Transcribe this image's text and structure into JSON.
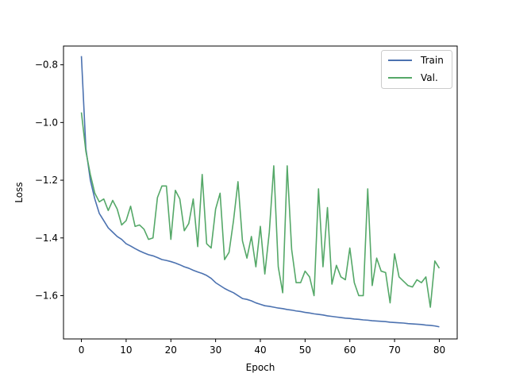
{
  "chart_data": {
    "type": "line",
    "title": "",
    "xlabel": "Epoch",
    "ylabel": "Loss",
    "xlim": [
      -4,
      84
    ],
    "ylim": [
      -1.75,
      -0.735
    ],
    "xticks": [
      0,
      10,
      20,
      30,
      40,
      50,
      60,
      70,
      80
    ],
    "xtick_labels": [
      "0",
      "10",
      "20",
      "30",
      "40",
      "50",
      "60",
      "70",
      "80"
    ],
    "yticks": [
      -1.6,
      -1.4,
      -1.2,
      -1.0,
      -0.8
    ],
    "ytick_labels": [
      "−1.6",
      "−1.4",
      "−1.2",
      "−1.0",
      "−0.8"
    ],
    "grid": false,
    "legend_position": "top-right",
    "series": [
      {
        "name": "Train",
        "color": "#4c72b0",
        "x": [
          0,
          1,
          2,
          3,
          4,
          5,
          6,
          7,
          8,
          9,
          10,
          11,
          12,
          13,
          14,
          15,
          16,
          17,
          18,
          19,
          20,
          21,
          22,
          23,
          24,
          25,
          26,
          27,
          28,
          29,
          30,
          31,
          32,
          33,
          34,
          35,
          36,
          37,
          38,
          39,
          40,
          41,
          42,
          43,
          44,
          45,
          46,
          47,
          48,
          49,
          50,
          51,
          52,
          53,
          54,
          55,
          56,
          57,
          58,
          59,
          60,
          61,
          62,
          63,
          64,
          65,
          66,
          67,
          68,
          69,
          70,
          71,
          72,
          73,
          74,
          75,
          76,
          77,
          78,
          79,
          80
        ],
        "values": [
          -0.77,
          -1.09,
          -1.2,
          -1.265,
          -1.315,
          -1.34,
          -1.365,
          -1.38,
          -1.395,
          -1.405,
          -1.42,
          -1.428,
          -1.437,
          -1.445,
          -1.452,
          -1.458,
          -1.462,
          -1.468,
          -1.475,
          -1.478,
          -1.482,
          -1.487,
          -1.493,
          -1.5,
          -1.505,
          -1.512,
          -1.518,
          -1.523,
          -1.53,
          -1.54,
          -1.555,
          -1.565,
          -1.575,
          -1.583,
          -1.59,
          -1.6,
          -1.61,
          -1.613,
          -1.618,
          -1.625,
          -1.63,
          -1.635,
          -1.637,
          -1.64,
          -1.643,
          -1.645,
          -1.648,
          -1.65,
          -1.653,
          -1.655,
          -1.658,
          -1.66,
          -1.663,
          -1.665,
          -1.667,
          -1.67,
          -1.672,
          -1.674,
          -1.676,
          -1.678,
          -1.679,
          -1.681,
          -1.682,
          -1.684,
          -1.685,
          -1.687,
          -1.688,
          -1.689,
          -1.69,
          -1.692,
          -1.693,
          -1.694,
          -1.695,
          -1.697,
          -1.698,
          -1.699,
          -1.7,
          -1.702,
          -1.703,
          -1.705,
          -1.708
        ]
      },
      {
        "name": "Val.",
        "color": "#55a868",
        "x": [
          0,
          1,
          2,
          3,
          4,
          5,
          6,
          7,
          8,
          9,
          10,
          11,
          12,
          13,
          14,
          15,
          16,
          17,
          18,
          19,
          20,
          21,
          22,
          23,
          24,
          25,
          26,
          27,
          28,
          29,
          30,
          31,
          32,
          33,
          34,
          35,
          36,
          37,
          38,
          39,
          40,
          41,
          42,
          43,
          44,
          45,
          46,
          47,
          48,
          49,
          50,
          51,
          52,
          53,
          54,
          55,
          56,
          57,
          58,
          59,
          60,
          61,
          62,
          63,
          64,
          65,
          66,
          67,
          68,
          69,
          70,
          71,
          72,
          73,
          74,
          75,
          76,
          77,
          78,
          79,
          80
        ],
        "values": [
          -0.965,
          -1.1,
          -1.18,
          -1.245,
          -1.275,
          -1.265,
          -1.305,
          -1.27,
          -1.3,
          -1.355,
          -1.34,
          -1.29,
          -1.36,
          -1.355,
          -1.37,
          -1.405,
          -1.4,
          -1.26,
          -1.22,
          -1.22,
          -1.405,
          -1.235,
          -1.265,
          -1.375,
          -1.35,
          -1.265,
          -1.43,
          -1.18,
          -1.42,
          -1.435,
          -1.3,
          -1.245,
          -1.475,
          -1.45,
          -1.34,
          -1.205,
          -1.41,
          -1.47,
          -1.395,
          -1.5,
          -1.36,
          -1.525,
          -1.38,
          -1.15,
          -1.5,
          -1.59,
          -1.15,
          -1.44,
          -1.555,
          -1.555,
          -1.515,
          -1.535,
          -1.6,
          -1.23,
          -1.5,
          -1.295,
          -1.56,
          -1.495,
          -1.535,
          -1.545,
          -1.435,
          -1.555,
          -1.6,
          -1.6,
          -1.23,
          -1.565,
          -1.47,
          -1.515,
          -1.52,
          -1.625,
          -1.455,
          -1.535,
          -1.55,
          -1.565,
          -1.57,
          -1.545,
          -1.555,
          -1.535,
          -1.64,
          -1.48,
          -1.505
        ]
      }
    ]
  }
}
